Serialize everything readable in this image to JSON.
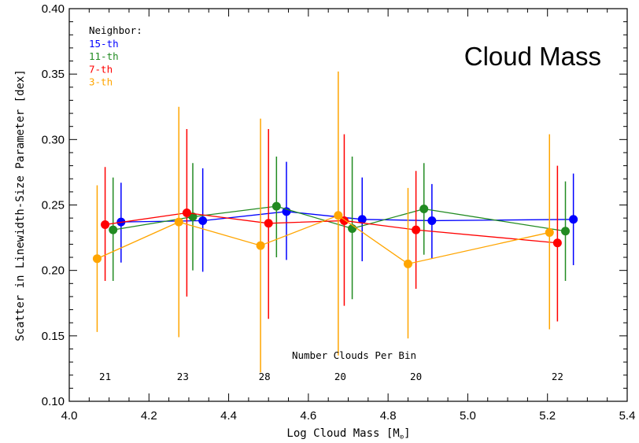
{
  "chart_data": {
    "type": "scatter",
    "title": "Cloud Mass",
    "xlabel": "Log Cloud Mass [M",
    "xlabel_suffix": "]",
    "ylabel": "Scatter in Linewidth-Size Parameter [dex]",
    "xlim": [
      4.0,
      5.4
    ],
    "ylim": [
      0.1,
      0.4
    ],
    "xticks": [
      4.0,
      4.2,
      4.4,
      4.6,
      4.8,
      5.0,
      5.2,
      5.4
    ],
    "xtick_labels": [
      "4.0",
      "4.2",
      "4.4",
      "4.6",
      "4.8",
      "5.0",
      "5.2",
      "5.4"
    ],
    "yticks": [
      0.1,
      0.15,
      0.2,
      0.25,
      0.3,
      0.35,
      0.4
    ],
    "ytick_labels": [
      "0.10",
      "0.15",
      "0.20",
      "0.25",
      "0.30",
      "0.35",
      "0.40"
    ],
    "legend_title": "Neighbor:",
    "legend_position": "top-left",
    "series": [
      {
        "name": "15-th",
        "color": "#0000ff",
        "x": [
          4.13,
          4.335,
          4.545,
          4.735,
          4.91,
          5.265
        ],
        "y": [
          0.237,
          0.238,
          0.245,
          0.239,
          0.238,
          0.239
        ],
        "yerr_low": [
          0.206,
          0.199,
          0.208,
          0.207,
          0.209,
          0.204
        ],
        "yerr_high": [
          0.267,
          0.278,
          0.283,
          0.271,
          0.266,
          0.274
        ]
      },
      {
        "name": "11-th",
        "color": "#228b22",
        "x": [
          4.11,
          4.31,
          4.52,
          4.71,
          4.89,
          5.245
        ],
        "y": [
          0.231,
          0.241,
          0.249,
          0.232,
          0.247,
          0.23
        ],
        "yerr_low": [
          0.192,
          0.2,
          0.21,
          0.178,
          0.212,
          0.192
        ],
        "yerr_high": [
          0.271,
          0.282,
          0.287,
          0.287,
          0.282,
          0.268
        ]
      },
      {
        "name": "7-th",
        "color": "#ff0000",
        "x": [
          4.09,
          4.295,
          4.5,
          4.69,
          4.87,
          5.225
        ],
        "y": [
          0.235,
          0.244,
          0.236,
          0.238,
          0.231,
          0.221
        ],
        "yerr_low": [
          0.192,
          0.18,
          0.163,
          0.173,
          0.186,
          0.161
        ],
        "yerr_high": [
          0.279,
          0.308,
          0.308,
          0.304,
          0.276,
          0.28
        ]
      },
      {
        "name": "3-th",
        "color": "#ffa500",
        "x": [
          4.07,
          4.275,
          4.48,
          4.675,
          4.85,
          5.205
        ],
        "y": [
          0.209,
          0.237,
          0.219,
          0.242,
          0.205,
          0.229
        ],
        "yerr_low": [
          0.153,
          0.149,
          0.122,
          0.135,
          0.148,
          0.155
        ],
        "yerr_high": [
          0.265,
          0.325,
          0.316,
          0.352,
          0.263,
          0.304
        ]
      }
    ],
    "annotation": "Number Clouds Per Bin",
    "counts": [
      {
        "x": 4.09,
        "label": "21"
      },
      {
        "x": 4.285,
        "label": "23"
      },
      {
        "x": 4.49,
        "label": "28"
      },
      {
        "x": 4.68,
        "label": "20"
      },
      {
        "x": 4.87,
        "label": "20"
      },
      {
        "x": 5.225,
        "label": "22"
      }
    ],
    "grid": false
  }
}
